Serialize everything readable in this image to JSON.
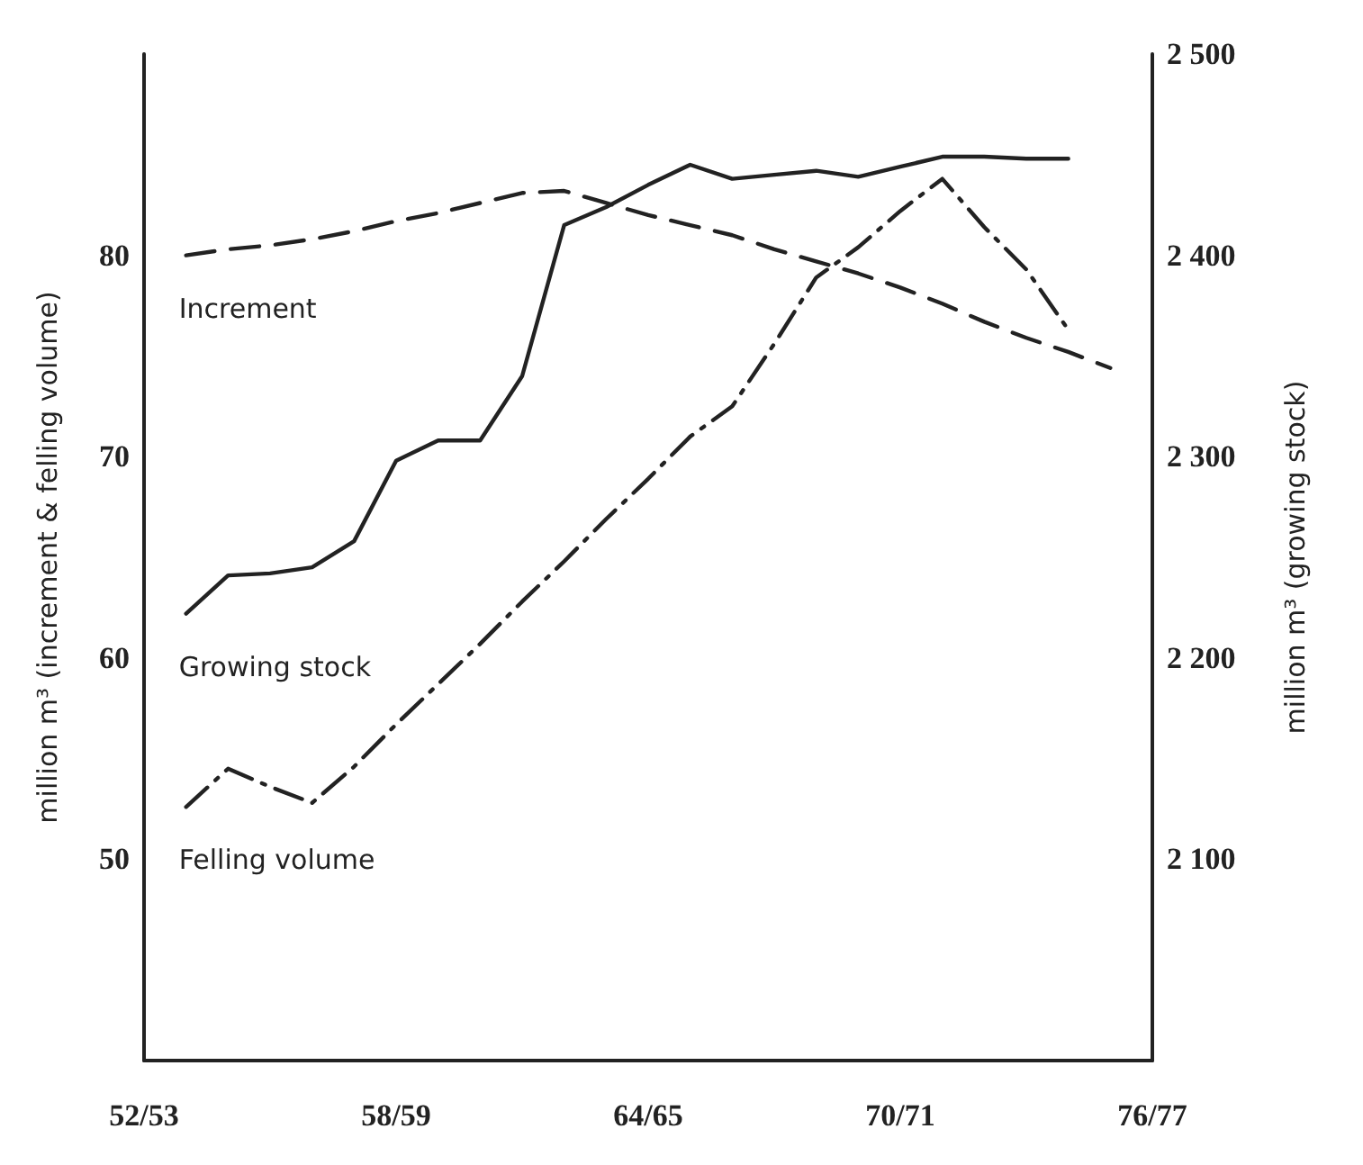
{
  "chart_data": {
    "type": "line",
    "categories": [
      "52/53",
      null,
      null,
      null,
      null,
      null,
      "58/59",
      null,
      null,
      null,
      null,
      null,
      "64/65",
      null,
      null,
      null,
      null,
      null,
      "70/71",
      null,
      null,
      null,
      null,
      null,
      "76/77"
    ],
    "ylim": [
      40,
      90
    ],
    "yticks": [
      50,
      60,
      70,
      80
    ],
    "y2lim": [
      2000,
      2500
    ],
    "y2ticks": [
      {
        "value": 2100,
        "label": "2 100"
      },
      {
        "value": 2200,
        "label": "2 200"
      },
      {
        "value": 2300,
        "label": "2 300"
      },
      {
        "value": 2400,
        "label": "2 400"
      },
      {
        "value": 2500,
        "label": "2 500"
      }
    ],
    "ylabel": "million m³ (increment & felling volume)",
    "y2label": "million m³ (growing stock)",
    "grid": false,
    "legend": false,
    "marker": "none",
    "series": [
      {
        "name": "Increment",
        "color": "#222222",
        "line_style": "dashed",
        "values": [
          null,
          80.0,
          80.3,
          80.5,
          80.8,
          81.2,
          81.7,
          82.1,
          82.6,
          83.1,
          83.2,
          82.6,
          82.0,
          81.5,
          81.0,
          80.3,
          79.7,
          79.1,
          78.4,
          77.6,
          76.7,
          75.9,
          75.2,
          74.4,
          null
        ]
      },
      {
        "name": "Growing stock",
        "color": "#222222",
        "line_style": "solid",
        "axis": "y2",
        "values": [
          null,
          2222,
          2241,
          2242,
          2245,
          2258,
          2298,
          2308,
          2308,
          2340,
          2415,
          2424,
          2435,
          2445,
          2438,
          2440,
          2442,
          2439,
          2444,
          2449,
          2449,
          2448,
          2448,
          null,
          null
        ]
      },
      {
        "name": "Felling volume",
        "color": "#222222",
        "line_style": "dotted",
        "values": [
          null,
          52.6,
          54.5,
          53.6,
          52.8,
          54.6,
          56.7,
          58.7,
          60.7,
          62.8,
          64.8,
          66.9,
          68.9,
          71.0,
          72.5,
          75.6,
          78.9,
          80.4,
          82.2,
          83.8,
          81.4,
          79.3,
          76.3,
          null,
          null
        ]
      }
    ]
  }
}
